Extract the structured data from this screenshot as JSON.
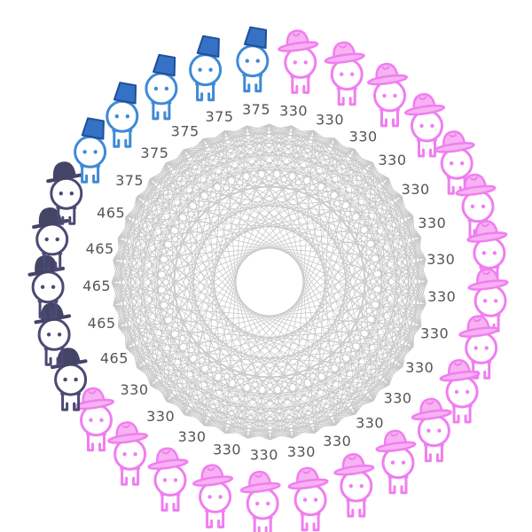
{
  "figures": [
    {
      "hat": "fedora",
      "label": "330"
    },
    {
      "hat": "fedora",
      "label": "330"
    },
    {
      "hat": "fedora",
      "label": "330"
    },
    {
      "hat": "fedora",
      "label": "330"
    },
    {
      "hat": "fedora",
      "label": "330"
    },
    {
      "hat": "fedora",
      "label": "330"
    },
    {
      "hat": "fedora",
      "label": "330"
    },
    {
      "hat": "fedora",
      "label": "330"
    },
    {
      "hat": "fedora",
      "label": "330"
    },
    {
      "hat": "fedora",
      "label": "330"
    },
    {
      "hat": "fedora",
      "label": "330"
    },
    {
      "hat": "fedora",
      "label": "330"
    },
    {
      "hat": "fedora",
      "label": "330"
    },
    {
      "hat": "fedora",
      "label": "330"
    },
    {
      "hat": "fedora",
      "label": "330"
    },
    {
      "hat": "fedora",
      "label": "330"
    },
    {
      "hat": "fedora",
      "label": "330"
    },
    {
      "hat": "fedora",
      "label": "330"
    },
    {
      "hat": "fedora",
      "label": "330"
    },
    {
      "hat": "bowler",
      "label": "465"
    },
    {
      "hat": "bowler",
      "label": "465"
    },
    {
      "hat": "bowler",
      "label": "465"
    },
    {
      "hat": "bowler",
      "label": "465"
    },
    {
      "hat": "bowler",
      "label": "465"
    },
    {
      "hat": "fez",
      "label": "375"
    },
    {
      "hat": "fez",
      "label": "375"
    },
    {
      "hat": "fez",
      "label": "375"
    },
    {
      "hat": "fez",
      "label": "375"
    },
    {
      "hat": "fez",
      "label": "375"
    }
  ],
  "colors": {
    "fedora": "#f07ef0",
    "fedora_hat": "#f7b2f2",
    "bowler": "#4a4a74",
    "bowler_hat": "#444466",
    "fez": "#3f8ad6",
    "fez_hat": "#3572c6",
    "chord": "#c8c8c8",
    "label": "#555555"
  }
}
